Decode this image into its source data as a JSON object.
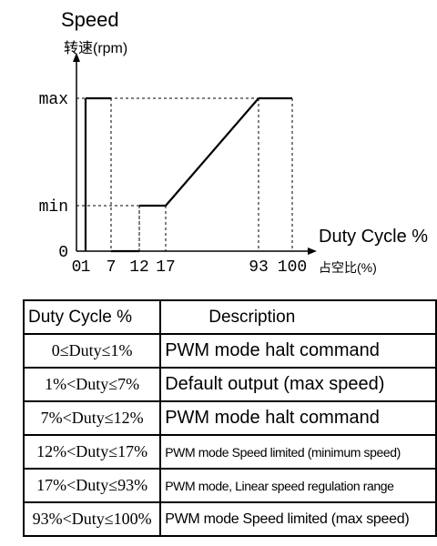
{
  "chart_data": {
    "type": "line",
    "title": "Speed",
    "ylabel": "转速(rpm)",
    "xlabel": "Duty Cycle %",
    "xlabel_cn": "占空比(%)",
    "x_ticks": [
      "0",
      "1",
      "7",
      "12",
      "17",
      "93",
      "100"
    ],
    "y_ticks": [
      "0",
      "min",
      "max"
    ],
    "x": [
      1,
      1,
      7,
      7,
      12,
      12,
      17,
      93,
      100
    ],
    "y": [
      "0",
      "max",
      "max",
      "0",
      "0",
      "min",
      "min",
      "max",
      "max"
    ],
    "xlim": [
      0,
      100
    ],
    "grid": false
  },
  "table": {
    "headers": [
      "Duty Cycle %",
      "Description"
    ],
    "rows": [
      {
        "range": "0≤Duty≤1%",
        "desc": "PWM mode  halt command"
      },
      {
        "range": "1%<Duty≤7%",
        "desc": "Default output (max speed)"
      },
      {
        "range": "7%<Duty≤12%",
        "desc": "PWM mode  halt command"
      },
      {
        "range": "12%<Duty≤17%",
        "desc": "PWM mode Speed limited  (minimum speed)"
      },
      {
        "range": "17%<Duty≤93%",
        "desc": "PWM mode, Linear speed regulation range"
      },
      {
        "range": "93%<Duty≤100%",
        "desc": "PWM mode Speed limited (max speed)"
      }
    ]
  }
}
